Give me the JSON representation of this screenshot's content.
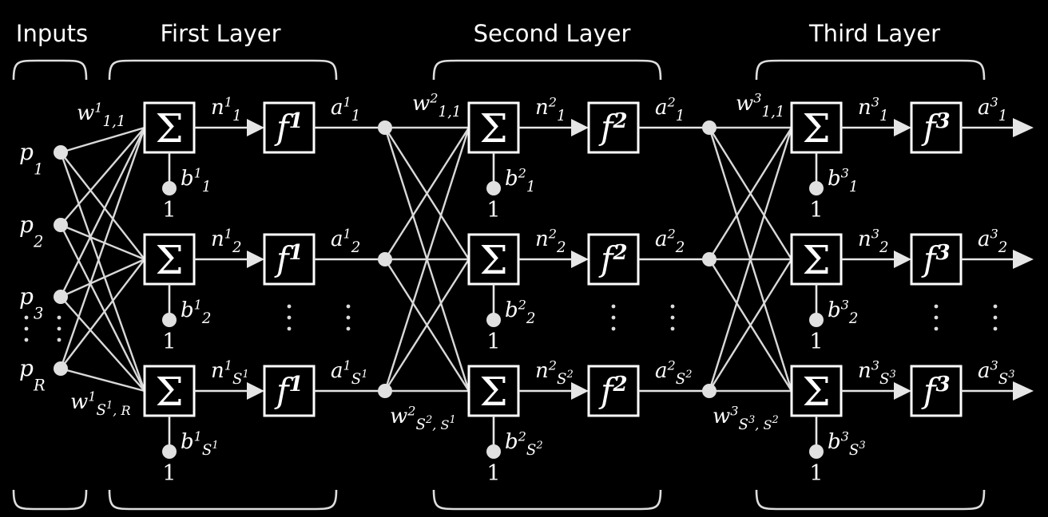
{
  "headers": {
    "inputs": "Inputs",
    "first_layer": "First Layer",
    "second_layer": "Second Layer",
    "third_layer": "Third Layer"
  },
  "inputs": [
    {
      "sym": "p",
      "sub": "1"
    },
    {
      "sym": "p",
      "sub": "2"
    },
    {
      "sym": "p",
      "sub": "3"
    },
    {
      "sym": "p",
      "sub": "R"
    }
  ],
  "sum_symbol": "Σ",
  "bias_input": "1",
  "layers": [
    {
      "sup": "1",
      "w_first": {
        "sym": "w",
        "sup": "1",
        "sub": "1,1"
      },
      "w_last": {
        "sym": "w",
        "sup": "1",
        "sub": "S",
        "subsup": "1",
        "sub2": ", R"
      },
      "neurons": [
        {
          "n": {
            "sym": "n",
            "sup": "1",
            "sub": "1",
            "subsup": ""
          },
          "a": {
            "sym": "a",
            "sup": "1",
            "sub": "1",
            "subsup": ""
          },
          "b": {
            "sym": "b",
            "sup": "1",
            "sub": "1",
            "subsup": ""
          }
        },
        {
          "n": {
            "sym": "n",
            "sup": "1",
            "sub": "2",
            "subsup": ""
          },
          "a": {
            "sym": "a",
            "sup": "1",
            "sub": "2",
            "subsup": ""
          },
          "b": {
            "sym": "b",
            "sup": "1",
            "sub": "2",
            "subsup": ""
          }
        },
        {
          "n": {
            "sym": "n",
            "sup": "1",
            "sub": "S",
            "subsup": "1"
          },
          "a": {
            "sym": "a",
            "sup": "1",
            "sub": "S",
            "subsup": "1"
          },
          "b": {
            "sym": "b",
            "sup": "1",
            "sub": "S",
            "subsup": "1"
          }
        }
      ],
      "f": {
        "sym": "f",
        "sup": "1"
      }
    },
    {
      "sup": "2",
      "w_first": {
        "sym": "w",
        "sup": "2",
        "sub": "1,1"
      },
      "w_last": {
        "sym": "w",
        "sup": "2",
        "sub": "S",
        "subsup": "2",
        "sub2": ", S",
        "sub2sup": "1"
      },
      "neurons": [
        {
          "n": {
            "sym": "n",
            "sup": "2",
            "sub": "1",
            "subsup": ""
          },
          "a": {
            "sym": "a",
            "sup": "2",
            "sub": "1",
            "subsup": ""
          },
          "b": {
            "sym": "b",
            "sup": "2",
            "sub": "1",
            "subsup": ""
          }
        },
        {
          "n": {
            "sym": "n",
            "sup": "2",
            "sub": "2",
            "subsup": ""
          },
          "a": {
            "sym": "a",
            "sup": "2",
            "sub": "2",
            "subsup": ""
          },
          "b": {
            "sym": "b",
            "sup": "2",
            "sub": "2",
            "subsup": ""
          }
        },
        {
          "n": {
            "sym": "n",
            "sup": "2",
            "sub": "S",
            "subsup": "2"
          },
          "a": {
            "sym": "a",
            "sup": "2",
            "sub": "S",
            "subsup": "2"
          },
          "b": {
            "sym": "b",
            "sup": "2",
            "sub": "S",
            "subsup": "2"
          }
        }
      ],
      "f": {
        "sym": "f",
        "sup": "2"
      }
    },
    {
      "sup": "3",
      "w_first": {
        "sym": "w",
        "sup": "3",
        "sub": "1,1"
      },
      "w_last": {
        "sym": "w",
        "sup": "3",
        "sub": "S",
        "subsup": "3",
        "sub2": ", S",
        "sub2sup": "2"
      },
      "neurons": [
        {
          "n": {
            "sym": "n",
            "sup": "3",
            "sub": "1",
            "subsup": ""
          },
          "a": {
            "sym": "a",
            "sup": "3",
            "sub": "1",
            "subsup": ""
          },
          "b": {
            "sym": "b",
            "sup": "3",
            "sub": "1",
            "subsup": ""
          }
        },
        {
          "n": {
            "sym": "n",
            "sup": "3",
            "sub": "2",
            "subsup": ""
          },
          "a": {
            "sym": "a",
            "sup": "3",
            "sub": "2",
            "subsup": ""
          },
          "b": {
            "sym": "b",
            "sup": "3",
            "sub": "2",
            "subsup": ""
          }
        },
        {
          "n": {
            "sym": "n",
            "sup": "3",
            "sub": "S",
            "subsup": "3"
          },
          "a": {
            "sym": "a",
            "sup": "3",
            "sub": "S",
            "subsup": "3"
          },
          "b": {
            "sym": "b",
            "sup": "3",
            "sub": "S",
            "subsup": "3"
          }
        }
      ],
      "f": {
        "sym": "f",
        "sup": "3"
      }
    }
  ]
}
